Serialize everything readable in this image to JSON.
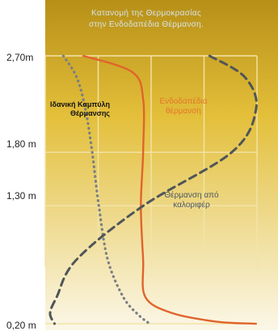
{
  "title_lines": [
    "Κατανομή της Θερμοκρασίας",
    "στην Ενδοδαπέδια Θέρμανση."
  ],
  "chart_data": {
    "type": "line",
    "title": "Κατανομή της Θερμοκρασίας στην Ενδοδαπέδια Θέρμανση.",
    "ylabel": "",
    "xlabel": "",
    "y_tick_labels": [
      "2,70m",
      "1,80 m",
      "1,30 m",
      "0,20 m"
    ],
    "y_ticks": [
      2.7,
      1.8,
      1.3,
      0.2
    ],
    "ylim": [
      0.2,
      2.7
    ],
    "xlim": [
      0,
      1
    ],
    "grid": true,
    "series": [
      {
        "name": "Ιδανική Καμπύλη Θέρμανσης",
        "style": "dotted",
        "color": "#7a7f82",
        "points": [
          [
            0.06,
            2.7
          ],
          [
            0.12,
            2.5
          ],
          [
            0.16,
            2.2
          ],
          [
            0.19,
            1.8
          ],
          [
            0.22,
            1.3
          ],
          [
            0.26,
            0.8
          ],
          [
            0.33,
            0.45
          ],
          [
            0.4,
            0.28
          ],
          [
            0.45,
            0.2
          ]
        ]
      },
      {
        "name": "Ενδοδαπέδια θέρμανση",
        "style": "solid",
        "color": "#e0642b",
        "points": [
          [
            0.15,
            2.7
          ],
          [
            0.37,
            2.55
          ],
          [
            0.42,
            2.3
          ],
          [
            0.42,
            1.8
          ],
          [
            0.41,
            1.3
          ],
          [
            0.42,
            0.8
          ],
          [
            0.43,
            0.45
          ],
          [
            0.55,
            0.3
          ],
          [
            0.75,
            0.22
          ],
          [
            0.93,
            0.2
          ]
        ]
      },
      {
        "name": "Θέρμανση από καλοριφέρ",
        "style": "dashed",
        "color": "#4f5559",
        "points": [
          [
            0.72,
            2.7
          ],
          [
            0.88,
            2.5
          ],
          [
            0.93,
            2.2
          ],
          [
            0.82,
            1.8
          ],
          [
            0.42,
            1.3
          ],
          [
            0.12,
            0.8
          ],
          [
            0.03,
            0.45
          ],
          [
            0.0,
            0.3
          ],
          [
            0.02,
            0.2
          ]
        ]
      }
    ]
  },
  "labels": {
    "ideal": [
      "Ιδανική Καμπύλη",
      "Θέρμανσης"
    ],
    "floor": [
      "Ενδοδαπέδια",
      "θέρμανση"
    ],
    "radiator": [
      "Θέρμανση από",
      "καλοριφέρ"
    ]
  },
  "colors": {
    "panel_top": "#b78f17",
    "panel_mid": "#e3bf3a",
    "panel_bottom": "#fbf7e8",
    "grid": "#f3e4a8",
    "title_text": "#d6e4ea"
  }
}
